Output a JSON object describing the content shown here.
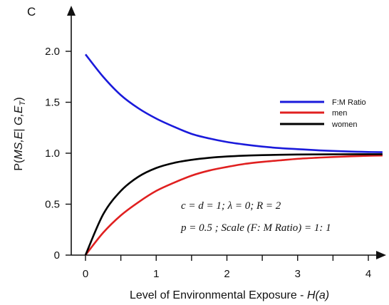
{
  "chart_data": {
    "type": "line",
    "panel_label": "C",
    "xlabel_text": "Level of Environmental Exposure - ",
    "xlabel_var": "H(a)",
    "ylabel_text": "P(",
    "ylabel_args": "MS,E",
    "ylabel_mid": "| ",
    "ylabel_given": "G,E",
    "ylabel_sub": "T",
    "ylabel_close": ")",
    "xlim": [
      -0.1,
      4.3
    ],
    "ylim": [
      0,
      2.4
    ],
    "xticks": [
      0,
      1,
      2,
      3,
      4
    ],
    "xticklabels": [
      "0",
      "1",
      "2",
      "3",
      "4"
    ],
    "yticks": [
      0,
      0.5,
      1.0,
      1.5,
      2.0
    ],
    "yticklabels": [
      "0",
      "0.5",
      "1.0",
      "1.5",
      "2.0"
    ],
    "grid": false,
    "legend_position": "right",
    "series": [
      {
        "name": "F:M Ratio",
        "color": "#1a1adb",
        "x": [
          0,
          0.25,
          0.5,
          0.75,
          1.0,
          1.25,
          1.5,
          1.75,
          2.0,
          2.25,
          2.5,
          2.75,
          3.0,
          3.25,
          3.5,
          3.75,
          4.0,
          4.2
        ],
        "y": [
          1.97,
          1.75,
          1.57,
          1.44,
          1.34,
          1.26,
          1.19,
          1.145,
          1.11,
          1.085,
          1.065,
          1.05,
          1.04,
          1.03,
          1.022,
          1.016,
          1.012,
          1.01
        ]
      },
      {
        "name": "men",
        "color": "#e02020",
        "x": [
          0,
          0.25,
          0.5,
          0.75,
          1.0,
          1.25,
          1.5,
          1.75,
          2.0,
          2.25,
          2.5,
          2.75,
          3.0,
          3.25,
          3.5,
          3.75,
          4.0,
          4.2
        ],
        "y": [
          0,
          0.22,
          0.39,
          0.52,
          0.63,
          0.71,
          0.78,
          0.83,
          0.865,
          0.895,
          0.915,
          0.93,
          0.945,
          0.955,
          0.963,
          0.97,
          0.975,
          0.978
        ]
      },
      {
        "name": "women",
        "color": "#000000",
        "x": [
          0,
          0.25,
          0.5,
          0.75,
          1.0,
          1.25,
          1.5,
          1.75,
          2.0,
          2.25,
          2.5,
          2.75,
          3.0,
          3.25,
          3.5,
          3.75,
          4.0,
          4.2
        ],
        "y": [
          0,
          0.4,
          0.63,
          0.77,
          0.855,
          0.905,
          0.935,
          0.955,
          0.968,
          0.976,
          0.981,
          0.985,
          0.987,
          0.988,
          0.989,
          0.99,
          0.99,
          0.99
        ]
      }
    ],
    "annotation_line1": "c = d = 1;  λ = 0;  R = 2",
    "annotation_line2": "p = 0.5 ;  Scale (F: M Ratio) = 1: 1"
  }
}
